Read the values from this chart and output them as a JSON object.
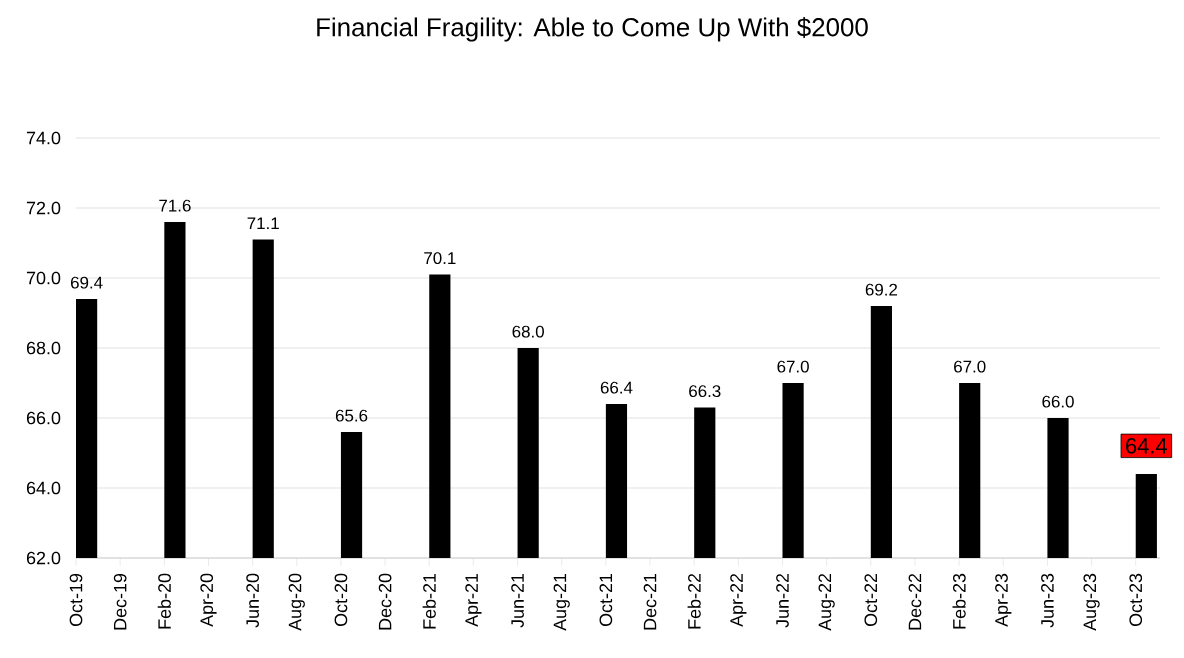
{
  "chart_data": {
    "type": "bar",
    "title": "Financial Fragility: Able to Come Up With $2000",
    "categories": [
      "Oct-19",
      "Dec-19",
      "Feb-20",
      "Apr-20",
      "Jun-20",
      "Aug-20",
      "Oct-20",
      "Dec-20",
      "Feb-21",
      "Apr-21",
      "Jun-21",
      "Aug-21",
      "Oct-21",
      "Dec-21",
      "Feb-22",
      "Apr-22",
      "Jun-22",
      "Aug-22",
      "Oct-22",
      "Dec-22",
      "Feb-23",
      "Apr-23",
      "Jun-23",
      "Aug-23",
      "Oct-23"
    ],
    "values": [
      69.4,
      null,
      71.6,
      null,
      71.1,
      null,
      65.6,
      null,
      70.1,
      null,
      68.0,
      null,
      66.4,
      null,
      66.3,
      null,
      67.0,
      null,
      69.2,
      null,
      67.0,
      null,
      66.0,
      null,
      64.4
    ],
    "value_labels": [
      "69.4",
      null,
      "71.6",
      null,
      "71.1",
      null,
      "65.6",
      null,
      "70.1",
      null,
      "68.0",
      null,
      "66.4",
      null,
      "66.3",
      null,
      "67.0",
      null,
      "69.2",
      null,
      "67.0",
      null,
      "66.0",
      null,
      "64.4"
    ],
    "color": "#000000",
    "ylim": [
      62,
      74
    ],
    "yticks": [
      {
        "value": 62,
        "label": "62.0"
      },
      {
        "value": 64,
        "label": "64.0"
      },
      {
        "value": 66,
        "label": "66.0"
      },
      {
        "value": 68,
        "label": "68.0"
      },
      {
        "value": 70,
        "label": "70.0"
      },
      {
        "value": 72,
        "label": "72.0"
      },
      {
        "value": 74,
        "label": "74.0"
      }
    ],
    "grid": "y"
  }
}
